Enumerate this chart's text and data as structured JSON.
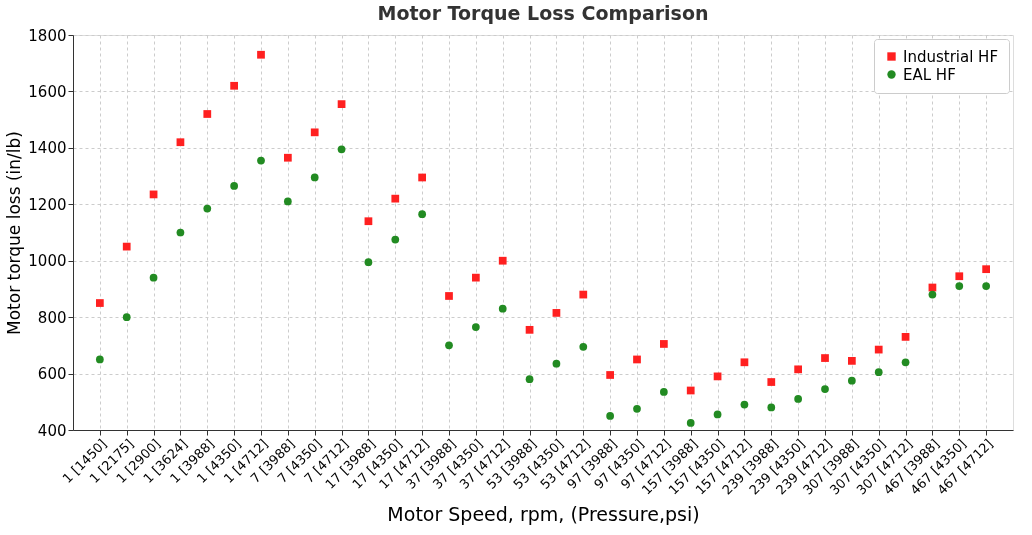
{
  "chart_data": {
    "type": "scatter",
    "title": "Motor Torque Loss Comparison",
    "xlabel": "Motor Speed, rpm, (Pressure,psi)",
    "ylabel": "Motor torque loss (in/lb)",
    "categories": [
      "1 [1450]",
      "1 [2175]",
      "1 [2900]",
      "1 [3624]",
      "1 [3988]",
      "1 [4350]",
      "1 [4712]",
      "7 [3988]",
      "7 [4350]",
      "7 [4712]",
      "17 [3988]",
      "17 [4350]",
      "17 [4712]",
      "37 [3988]",
      "37 [4350]",
      "37 [4712]",
      "53 [3988]",
      "53 [4350]",
      "53 [4712]",
      "97 [3988]",
      "97 [4350]",
      "97 [4712]",
      "157 [3988]",
      "157 [4350]",
      "157 [4712]",
      "239 [3988]",
      "239 [4350]",
      "239 [4712]",
      "307 [3988]",
      "307 [4350]",
      "307 [4712]",
      "467 [3988]",
      "467 [4350]",
      "467 [4712]"
    ],
    "series": [
      {
        "name": "Industrial HF",
        "color": "#ff2020",
        "marker": "square",
        "values": [
          850,
          1050,
          1235,
          1420,
          1520,
          1620,
          1730,
          1365,
          1455,
          1555,
          1140,
          1220,
          1295,
          875,
          940,
          1000,
          755,
          815,
          880,
          595,
          650,
          705,
          540,
          590,
          640,
          570,
          615,
          655,
          645,
          685,
          730,
          905,
          945,
          970
        ]
      },
      {
        "name": "EAL HF",
        "color": "#228b22",
        "marker": "circle",
        "values": [
          650,
          800,
          940,
          1100,
          1185,
          1265,
          1355,
          1210,
          1295,
          1395,
          995,
          1075,
          1165,
          700,
          765,
          830,
          580,
          635,
          695,
          450,
          475,
          535,
          425,
          455,
          490,
          480,
          510,
          545,
          575,
          605,
          640,
          880,
          910,
          910
        ]
      }
    ],
    "ylim": [
      400,
      1800
    ],
    "yticks": [
      400,
      600,
      800,
      1000,
      1200,
      1400,
      1600,
      1800
    ],
    "grid": true,
    "legend": "top right"
  }
}
